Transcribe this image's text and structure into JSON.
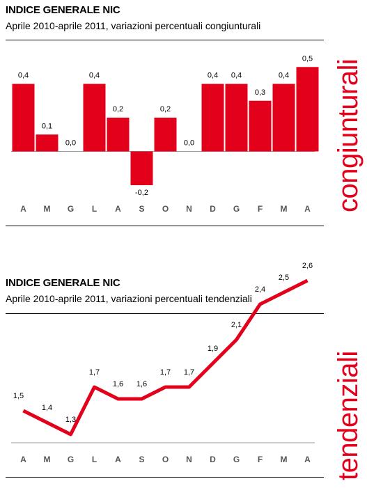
{
  "charts": [
    {
      "title": "INDICE GENERALE NIC",
      "subtitle": "Aprile 2010-aprile 2011, variazioni percentuali congiunturali",
      "side_label": "congiunturali"
    },
    {
      "title": "INDICE GENERALE NIC",
      "subtitle": "Aprile 2010-aprile 2011, variazioni percentuali tendenziali",
      "side_label": "tendenziali"
    }
  ],
  "colors": {
    "accent": "#e3001b",
    "axis": "#999999"
  },
  "chart_data": [
    {
      "type": "bar",
      "title": "INDICE GENERALE NIC",
      "subtitle": "Aprile 2010-aprile 2011, variazioni percentuali congiunturali",
      "categories": [
        "A",
        "M",
        "G",
        "L",
        "A",
        "S",
        "O",
        "N",
        "D",
        "G",
        "F",
        "M",
        "A"
      ],
      "values": [
        0.4,
        0.1,
        0.0,
        0.4,
        0.2,
        -0.2,
        0.2,
        0.0,
        0.4,
        0.4,
        0.3,
        0.4,
        0.5
      ],
      "value_labels": [
        "0,4",
        "0,1",
        "0,0",
        "0,4",
        "0,2",
        "-0,2",
        "0,2",
        "0,0",
        "0,4",
        "0,4",
        "0,3",
        "0,4",
        "0,5"
      ],
      "ylim": [
        -0.3,
        0.6
      ],
      "grid": false
    },
    {
      "type": "line",
      "title": "INDICE GENERALE NIC",
      "subtitle": "Aprile 2010-aprile 2011, variazioni percentuali tendenziali",
      "categories": [
        "A",
        "M",
        "G",
        "L",
        "A",
        "S",
        "O",
        "N",
        "D",
        "G",
        "F",
        "M",
        "A"
      ],
      "values": [
        1.5,
        1.4,
        1.3,
        1.7,
        1.6,
        1.6,
        1.7,
        1.7,
        1.9,
        2.1,
        2.4,
        2.5,
        2.6
      ],
      "value_labels": [
        "1,5",
        "1,4",
        "1,3",
        "1,7",
        "1,6",
        "1,6",
        "1,7",
        "1,7",
        "1,9",
        "2,1",
        "2,4",
        "2,5",
        "2,6"
      ],
      "ylim": [
        1.0,
        2.8
      ],
      "grid": false
    }
  ]
}
